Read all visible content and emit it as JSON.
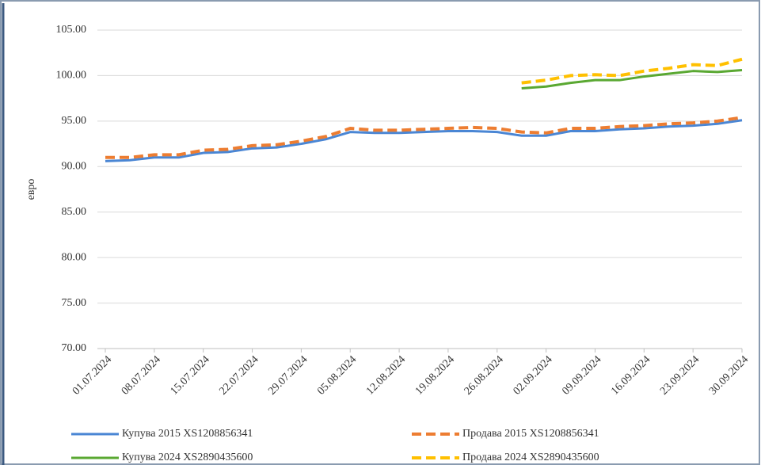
{
  "chart_data": {
    "type": "line",
    "ylabel": "евро",
    "categories": [
      "01.07.2024",
      null,
      "08.07.2024",
      null,
      "15.07.2024",
      null,
      "22.07.2024",
      null,
      "29.07.2024",
      null,
      "05.08.2024",
      null,
      "12.08.2024",
      null,
      "19.08.2024",
      null,
      "26.08.2024",
      null,
      "02.09.2024",
      null,
      "09.09.2024",
      null,
      "16.09.2024",
      null,
      "23.09.2024",
      null,
      "30.09.2024"
    ],
    "series": [
      {
        "name": "Купува 2015  XS1208856341",
        "color": "#4a86d4",
        "dash": false,
        "values": [
          90.6,
          90.7,
          91.0,
          91.0,
          91.5,
          91.6,
          92.0,
          92.1,
          92.5,
          93.0,
          93.8,
          93.7,
          93.7,
          93.8,
          93.9,
          93.9,
          93.8,
          93.4,
          93.4,
          93.9,
          93.9,
          94.1,
          94.2,
          94.4,
          94.5,
          94.7,
          95.1
        ]
      },
      {
        "name": "Продава 2015  XS1208856341",
        "color": "#ed7d31",
        "dash": true,
        "values": [
          91.0,
          91.0,
          91.3,
          91.3,
          91.8,
          91.9,
          92.3,
          92.4,
          92.8,
          93.3,
          94.2,
          94.0,
          94.0,
          94.1,
          94.2,
          94.3,
          94.2,
          93.8,
          93.7,
          94.2,
          94.2,
          94.4,
          94.5,
          94.7,
          94.8,
          95.0,
          95.4
        ]
      },
      {
        "name": "Купува 2024  XS2890435600",
        "color": "#5aa832",
        "dash": false,
        "values": [
          null,
          null,
          null,
          null,
          null,
          null,
          null,
          null,
          null,
          null,
          null,
          null,
          null,
          null,
          null,
          null,
          null,
          98.6,
          98.8,
          99.2,
          99.5,
          99.5,
          99.9,
          100.2,
          100.5,
          100.4,
          100.6
        ]
      },
      {
        "name": "Продава 2024  XS2890435600",
        "color": "#ffc000",
        "dash": true,
        "values": [
          null,
          null,
          null,
          null,
          null,
          null,
          null,
          null,
          null,
          null,
          null,
          null,
          null,
          null,
          null,
          null,
          null,
          99.2,
          99.5,
          100.0,
          100.1,
          100.0,
          100.5,
          100.8,
          101.2,
          101.1,
          101.8
        ]
      }
    ],
    "ylim": [
      70,
      105
    ],
    "yticks": [
      {
        "value": 70,
        "label": "70.00"
      },
      {
        "value": 75,
        "label": "75.00"
      },
      {
        "value": 80,
        "label": "80.00"
      },
      {
        "value": 85,
        "label": "85.00"
      },
      {
        "value": 90,
        "label": "90.00"
      },
      {
        "value": 95,
        "label": "95.00"
      },
      {
        "value": 100,
        "label": "100.00"
      },
      {
        "value": 105,
        "label": "105.00"
      }
    ],
    "grid": true,
    "legend": "bottom"
  }
}
